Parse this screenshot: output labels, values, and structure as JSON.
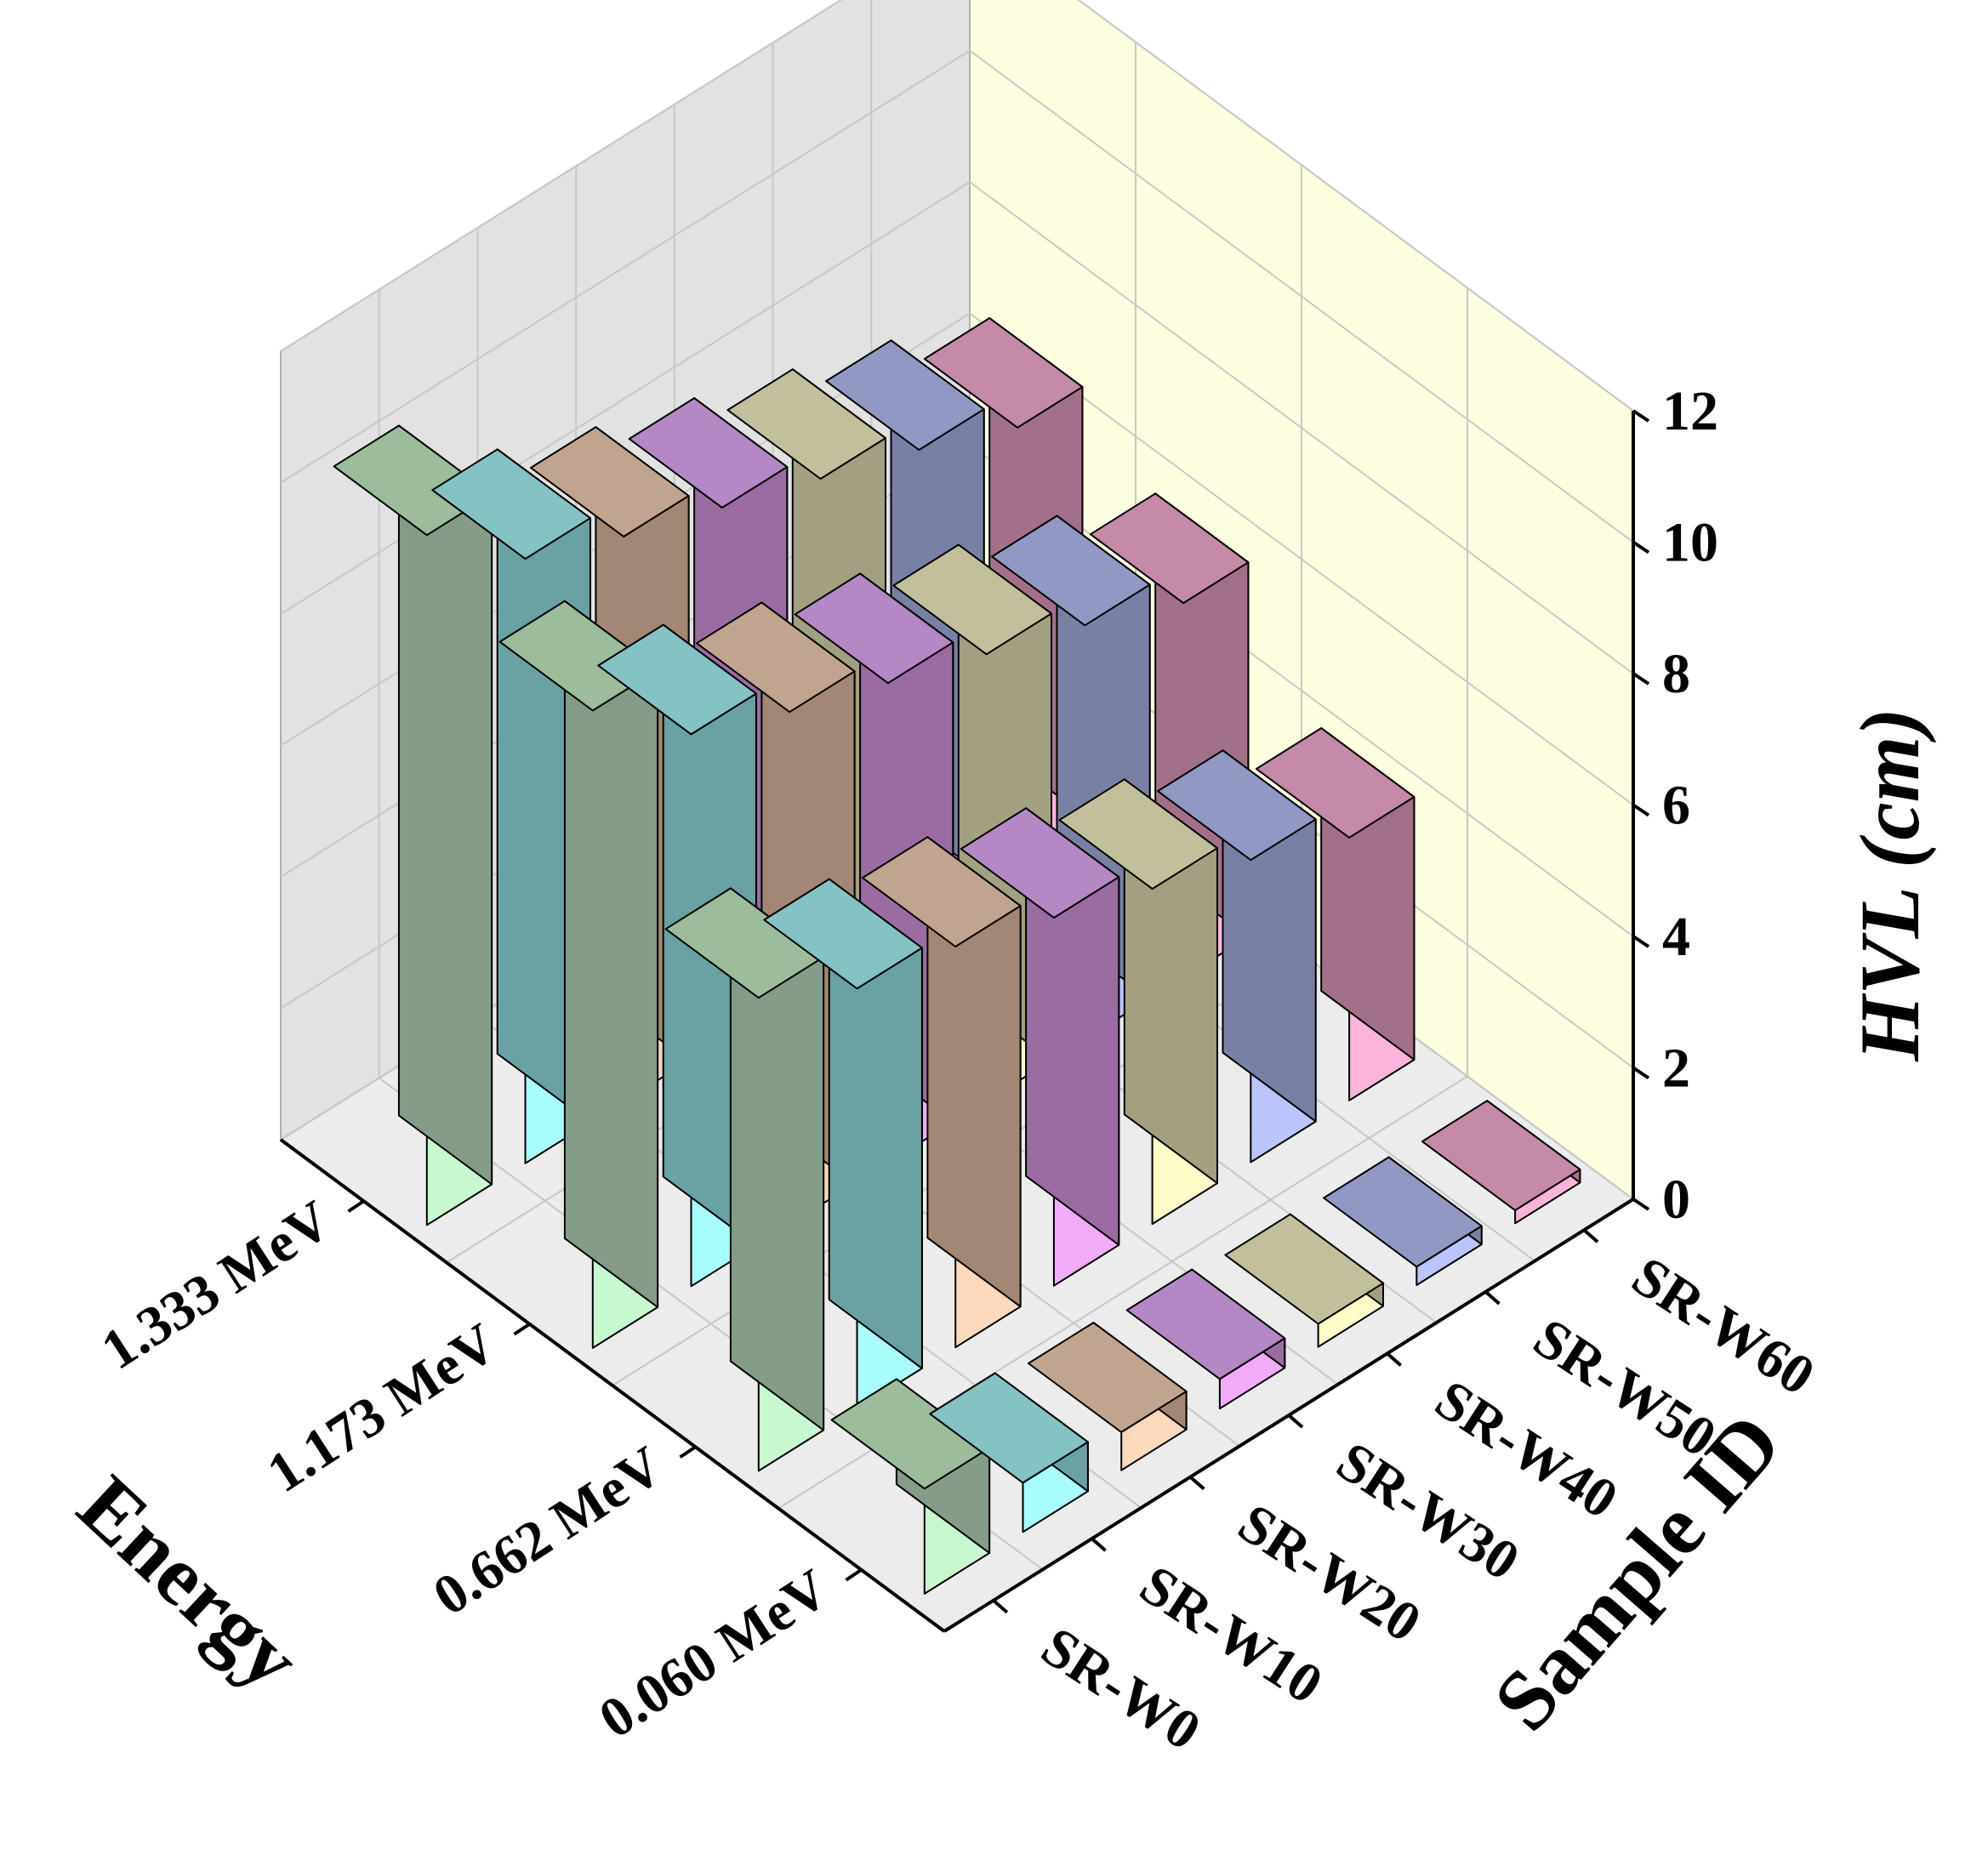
{
  "chart_data": {
    "type": "bar",
    "subtype": "3d-grouped-bar",
    "title": "",
    "xlabel": "Sample ID",
    "ylabel": "Energy",
    "zlabel": "HVL (cm)",
    "zlim": [
      0,
      12
    ],
    "z_ticks": [
      0,
      2,
      4,
      6,
      8,
      10,
      12
    ],
    "grid": true,
    "samples": [
      "SR-W0",
      "SR-W10",
      "SR-W20",
      "SR-W30",
      "SR-W40",
      "SR-W50",
      "SR-W60"
    ],
    "energies": [
      "0.060 MeV",
      "0.662 MeV",
      "1.173 MeV",
      "1.333 MeV"
    ],
    "series": [
      {
        "energy": "0.060 MeV",
        "values": [
          1.6,
          0.75,
          0.58,
          0.45,
          0.35,
          0.28,
          0.2
        ]
      },
      {
        "energy": "0.662 MeV",
        "values": [
          7.2,
          6.4,
          6.1,
          5.6,
          5.1,
          4.6,
          4.0
        ]
      },
      {
        "energy": "1.173 MeV",
        "values": [
          9.7,
          8.4,
          7.8,
          7.3,
          6.8,
          6.3,
          5.7
        ]
      },
      {
        "energy": "1.333 MeV",
        "values": [
          10.5,
          9.2,
          8.6,
          8.1,
          7.6,
          7.1,
          6.5
        ]
      }
    ],
    "colors": {
      "walls": {
        "back": "#e2e2e2",
        "side": "#fdfde0",
        "floor": "#ececec"
      },
      "samples": {
        "SR-W0": {
          "front": "#c8f8d0",
          "side": "#849c88",
          "top": "#9cbc9c"
        },
        "SR-W10": {
          "front": "#a8fcfc",
          "side": "#6aa2a4",
          "top": "#84c2c4"
        },
        "SR-W20": {
          "front": "#fcd8bc",
          "side": "#a28774",
          "top": "#c0a490"
        },
        "SR-W30": {
          "front": "#f0acf8",
          "side": "#9a6ca2",
          "top": "#b488c4"
        },
        "SR-W40": {
          "front": "#fcfcc8",
          "side": "#a2a080",
          "top": "#c2c09c"
        },
        "SR-W50": {
          "front": "#bcc4fc",
          "side": "#7880a4",
          "top": "#9298c4"
        },
        "SR-W60": {
          "front": "#fcb4dc",
          "side": "#a27088",
          "top": "#c48aa8"
        }
      }
    }
  }
}
